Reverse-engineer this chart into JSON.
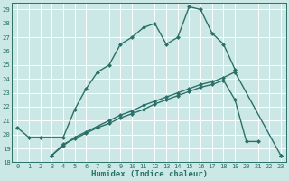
{
  "xlabel": "Humidex (Indice chaleur)",
  "bg_color": "#cce8e6",
  "grid_color": "#ffffff",
  "line_color": "#2a7068",
  "xlim_min": -0.5,
  "xlim_max": 23.5,
  "ylim_min": 18.0,
  "ylim_max": 29.5,
  "yticks": [
    18,
    19,
    20,
    21,
    22,
    23,
    24,
    25,
    26,
    27,
    28,
    29
  ],
  "xticks": [
    0,
    1,
    2,
    3,
    4,
    5,
    6,
    7,
    8,
    9,
    10,
    11,
    12,
    13,
    14,
    15,
    16,
    17,
    18,
    19,
    20,
    21,
    22,
    23
  ],
  "curve1_x": [
    0,
    1,
    2,
    4,
    5,
    6,
    7,
    8,
    9,
    10,
    11,
    12,
    13,
    14,
    15,
    16,
    17,
    18,
    19
  ],
  "curve1_y": [
    20.5,
    19.8,
    19.8,
    19.8,
    21.8,
    23.3,
    24.5,
    25.0,
    26.5,
    27.0,
    27.7,
    28.0,
    26.5,
    27.0,
    29.2,
    29.0,
    27.3,
    26.5,
    24.7
  ],
  "curve2_x": [
    3,
    4,
    5,
    6,
    7,
    8,
    9,
    10,
    11,
    12,
    13,
    14,
    15,
    16,
    17,
    18,
    19,
    20,
    21,
    22,
    23
  ],
  "curve2_y": [
    18.5,
    19.3,
    19.7,
    20.1,
    20.5,
    20.8,
    21.2,
    21.5,
    21.8,
    22.2,
    22.5,
    22.8,
    23.1,
    23.4,
    23.6,
    23.9,
    22.5,
    19.5,
    19.5,
    null,
    18.5
  ],
  "curve3_x": [
    3,
    4,
    5,
    6,
    7,
    8,
    9,
    10,
    11,
    12,
    13,
    14,
    15,
    16,
    17,
    18,
    19,
    23
  ],
  "curve3_y": [
    18.5,
    19.2,
    19.8,
    20.2,
    20.6,
    21.0,
    21.4,
    21.7,
    22.1,
    22.4,
    22.7,
    23.0,
    23.3,
    23.6,
    23.8,
    24.1,
    24.5,
    18.5
  ]
}
